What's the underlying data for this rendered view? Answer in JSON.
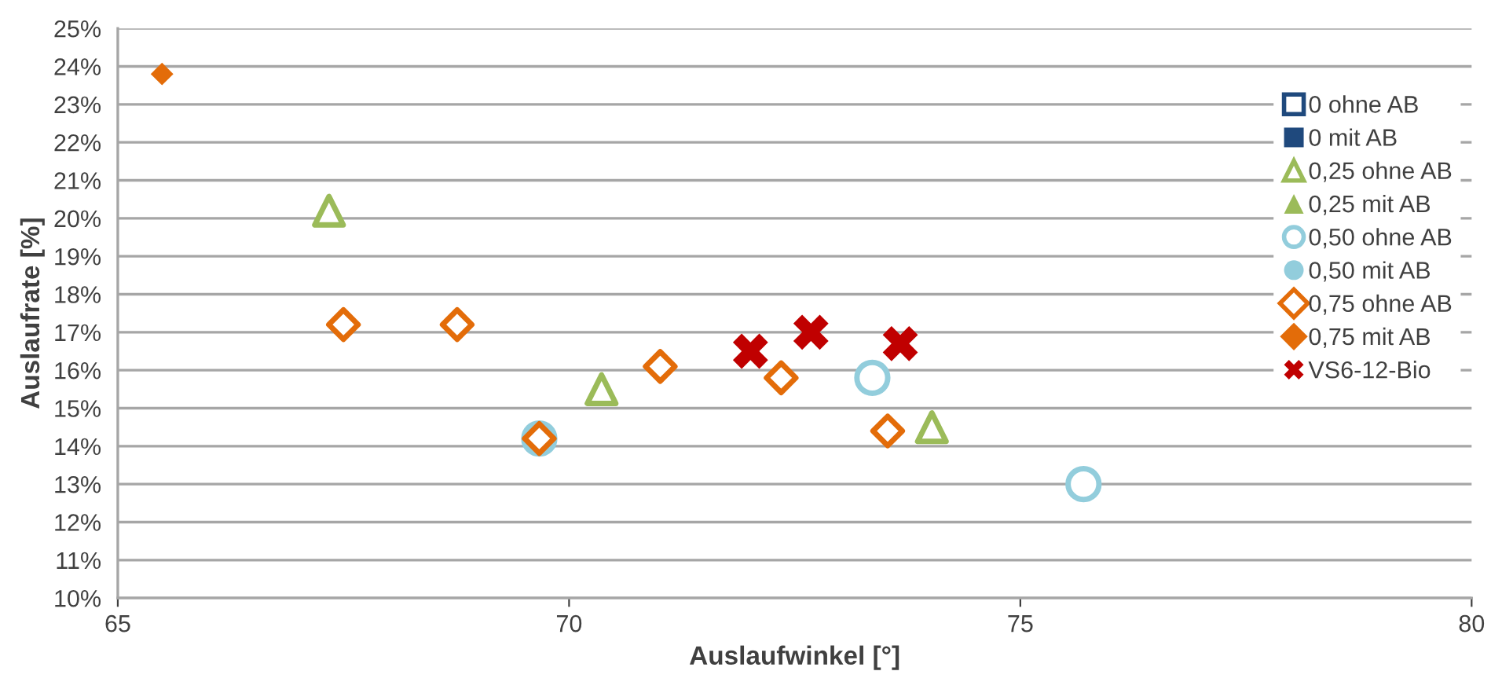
{
  "chart_data": {
    "type": "scatter",
    "xlabel": "Auslaufwinkel [°]",
    "ylabel": "Auslaufrate [%]",
    "xlim": [
      65,
      80
    ],
    "xticks": [
      65,
      70,
      75,
      80
    ],
    "ylim": [
      10,
      25
    ],
    "yticks": [
      {
        "value": 10,
        "label": "10%"
      },
      {
        "value": 11,
        "label": "11%"
      },
      {
        "value": 12,
        "label": "12%"
      },
      {
        "value": 13,
        "label": "13%"
      },
      {
        "value": 14,
        "label": "14%"
      },
      {
        "value": 15,
        "label": "15%"
      },
      {
        "value": 16,
        "label": "16%"
      },
      {
        "value": 17,
        "label": "17%"
      },
      {
        "value": 18,
        "label": "18%"
      },
      {
        "value": 19,
        "label": "19%"
      },
      {
        "value": 20,
        "label": "20%"
      },
      {
        "value": 21,
        "label": "21%"
      },
      {
        "value": 22,
        "label": "22%"
      },
      {
        "value": 23,
        "label": "23%"
      },
      {
        "value": 24,
        "label": "24%"
      },
      {
        "value": 25,
        "label": "25%"
      }
    ],
    "grid": "y",
    "legend": "right",
    "series": [
      {
        "name": "0 ohne AB",
        "color": "#1f497d",
        "marker": "square"
      },
      {
        "name": "0 mit AB",
        "color": "#1f497d",
        "marker": "square"
      },
      {
        "name": "0,25 ohne AB",
        "color": "#9bbb59",
        "marker": "triangle",
        "x": [
          67.34,
          70.36,
          74.02
        ],
        "values": [
          20.2,
          15.5,
          14.5
        ]
      },
      {
        "name": "0,25 mit AB",
        "color": "#9bbb59",
        "marker": "triangle"
      },
      {
        "name": "0,50 ohne AB",
        "color": "#92cddc",
        "marker": "circle",
        "x": [
          69.67,
          73.36,
          75.7
        ],
        "values": [
          14.2,
          15.8,
          13.0
        ]
      },
      {
        "name": "0,50 mit AB",
        "color": "#92cddc",
        "marker": "circle"
      },
      {
        "name": "0,75 ohne AB",
        "color": "#e36c09",
        "marker": "diamond",
        "x": [
          67.5,
          68.76,
          69.67,
          71.01,
          72.35,
          73.53
        ],
        "values": [
          17.2,
          17.2,
          14.2,
          16.1,
          15.8,
          14.4
        ]
      },
      {
        "name": "0,75 mit AB",
        "color": "#e36c09",
        "marker": "diamond",
        "x": [
          65.49
        ],
        "values": [
          23.8
        ]
      },
      {
        "name": "VS6-12-Bio",
        "color": "#c00000",
        "marker": "cross",
        "x": [
          72.01,
          72.68,
          73.67
        ],
        "values": [
          16.5,
          17.0,
          16.7
        ]
      }
    ]
  }
}
